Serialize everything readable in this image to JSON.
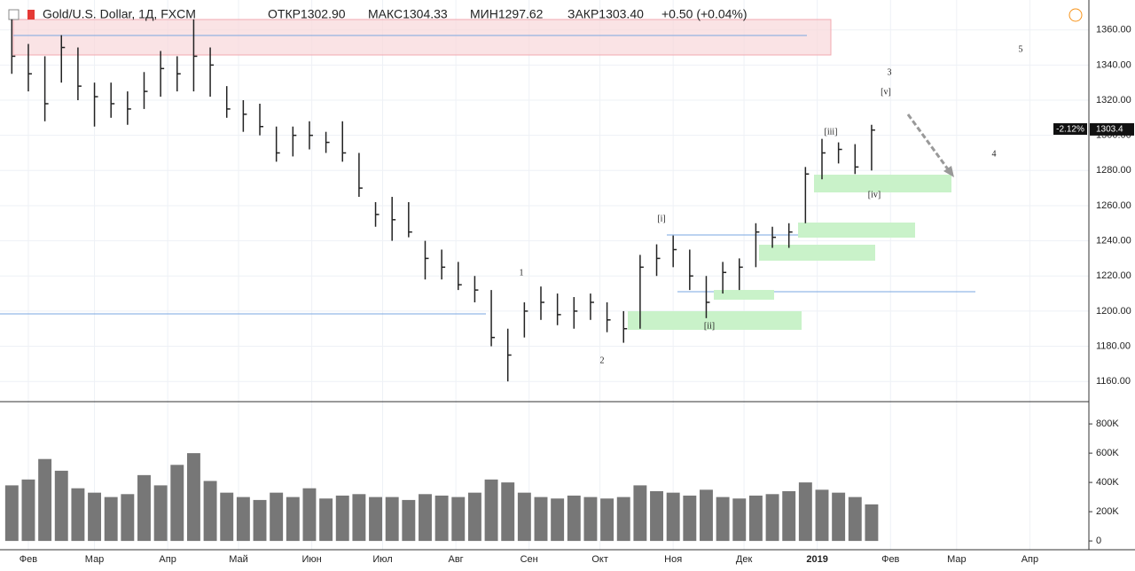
{
  "chart_data": {
    "type": "ohlc",
    "title": "Gold/U.S. Dollar, 1Д, FXCM",
    "open_label": "ОТКР1302.90",
    "high_label": "МАКС1304.33",
    "low_label": "МИН1297.62",
    "close_label": "ЗАКР1303.40",
    "change_label": "+0.50 (+0.04%)",
    "last_change": "-2.12%",
    "last_price": 1303.4,
    "x": [
      -7,
      0,
      7,
      14,
      21,
      28,
      35,
      42,
      49,
      56,
      63,
      70,
      77,
      84,
      91,
      98,
      105,
      112,
      119,
      126,
      133,
      140,
      147,
      154,
      161,
      168,
      175,
      182,
      189,
      196,
      203,
      210,
      217,
      224,
      231,
      238,
      245,
      252,
      259,
      266,
      273,
      280,
      287,
      294,
      301,
      308,
      315,
      322,
      329,
      336,
      343,
      350,
      357
    ],
    "high": [
      1366,
      1352,
      1345,
      1357,
      1350,
      1330,
      1330,
      1325,
      1336,
      1348,
      1345,
      1366,
      1350,
      1328,
      1320,
      1318,
      1305,
      1305,
      1308,
      1302,
      1308,
      1290,
      1262,
      1265,
      1262,
      1240,
      1235,
      1228,
      1220,
      1212,
      1190,
      1205,
      1214,
      1210,
      1208,
      1210,
      1205,
      1200,
      1232,
      1238,
      1243,
      1235,
      1220,
      1228,
      1230,
      1250,
      1248,
      1250,
      1282,
      1298,
      1296,
      1295,
      1306
    ],
    "low": [
      1335,
      1325,
      1308,
      1330,
      1320,
      1305,
      1310,
      1306,
      1315,
      1322,
      1325,
      1325,
      1322,
      1310,
      1302,
      1300,
      1285,
      1288,
      1292,
      1290,
      1285,
      1265,
      1248,
      1240,
      1242,
      1218,
      1218,
      1212,
      1205,
      1180,
      1160,
      1185,
      1195,
      1192,
      1190,
      1195,
      1188,
      1182,
      1190,
      1220,
      1225,
      1212,
      1196,
      1210,
      1212,
      1225,
      1236,
      1236,
      1250,
      1275,
      1284,
      1278,
      1280
    ],
    "close": [
      1345,
      1335,
      1318,
      1350,
      1328,
      1322,
      1318,
      1315,
      1325,
      1338,
      1335,
      1345,
      1340,
      1315,
      1312,
      1305,
      1290,
      1300,
      1300,
      1296,
      1290,
      1270,
      1255,
      1252,
      1245,
      1230,
      1225,
      1215,
      1212,
      1185,
      1175,
      1200,
      1205,
      1198,
      1200,
      1205,
      1195,
      1190,
      1225,
      1230,
      1235,
      1220,
      1205,
      1222,
      1225,
      1245,
      1242,
      1245,
      1278,
      1290,
      1292,
      1282,
      1303
    ],
    "xlim": [
      -12,
      449
    ],
    "ylim": [
      1149,
      1377
    ],
    "yticks": [
      {
        "value": 1160,
        "label": "1160.00"
      },
      {
        "value": 1180,
        "label": "1180.00"
      },
      {
        "value": 1200,
        "label": "1200.00"
      },
      {
        "value": 1220,
        "label": "1220.00"
      },
      {
        "value": 1240,
        "label": "1240.00"
      },
      {
        "value": 1260,
        "label": "1260.00"
      },
      {
        "value": 1280,
        "label": "1280.00"
      },
      {
        "value": 1300,
        "label": "1300.00"
      },
      {
        "value": 1320,
        "label": "1320.00"
      },
      {
        "value": 1340,
        "label": "1340.00"
      },
      {
        "value": 1360,
        "label": "1360.00"
      }
    ],
    "xticks": [
      {
        "value": 0,
        "label": "Фев"
      },
      {
        "value": 28,
        "label": "Мар"
      },
      {
        "value": 59,
        "label": "Апр"
      },
      {
        "value": 89,
        "label": "Май"
      },
      {
        "value": 120,
        "label": "Июн"
      },
      {
        "value": 150,
        "label": "Июл"
      },
      {
        "value": 181,
        "label": "Авг"
      },
      {
        "value": 212,
        "label": "Сен"
      },
      {
        "value": 242,
        "label": "Окт"
      },
      {
        "value": 273,
        "label": "Ноя"
      },
      {
        "value": 303,
        "label": "Дек"
      },
      {
        "value": 334,
        "label": "2019"
      },
      {
        "value": 365,
        "label": "Фев"
      },
      {
        "value": 393,
        "label": "Мар"
      },
      {
        "value": 424,
        "label": "Апр"
      }
    ],
    "color": "#222222",
    "grid": true,
    "waves": [
      "1",
      "2",
      "3",
      "4",
      "5",
      "[i]",
      "[ii]",
      "[iii]",
      "[iv]",
      "[v]"
    ],
    "volume": {
      "color": "#777777",
      "values": [
        380000,
        420000,
        560000,
        480000,
        360000,
        330000,
        300000,
        320000,
        450000,
        380000,
        520000,
        600000,
        410000,
        330000,
        300000,
        280000,
        330000,
        300000,
        360000,
        290000,
        310000,
        320000,
        300000,
        300000,
        280000,
        320000,
        310000,
        300000,
        330000,
        420000,
        400000,
        330000,
        300000,
        290000,
        310000,
        300000,
        290000,
        300000,
        380000,
        340000,
        330000,
        310000,
        350000,
        300000,
        290000,
        310000,
        320000,
        340000,
        400000,
        350000,
        330000,
        300000,
        250000
      ],
      "ylim": [
        -60000,
        940000
      ],
      "yticks": [
        0,
        {
          "value": 200000,
          "label": "200K"
        },
        {
          "value": 400000,
          "label": "400K"
        },
        {
          "value": 600000,
          "label": "600K"
        },
        {
          "value": 800000,
          "label": "800K"
        }
      ]
    }
  }
}
